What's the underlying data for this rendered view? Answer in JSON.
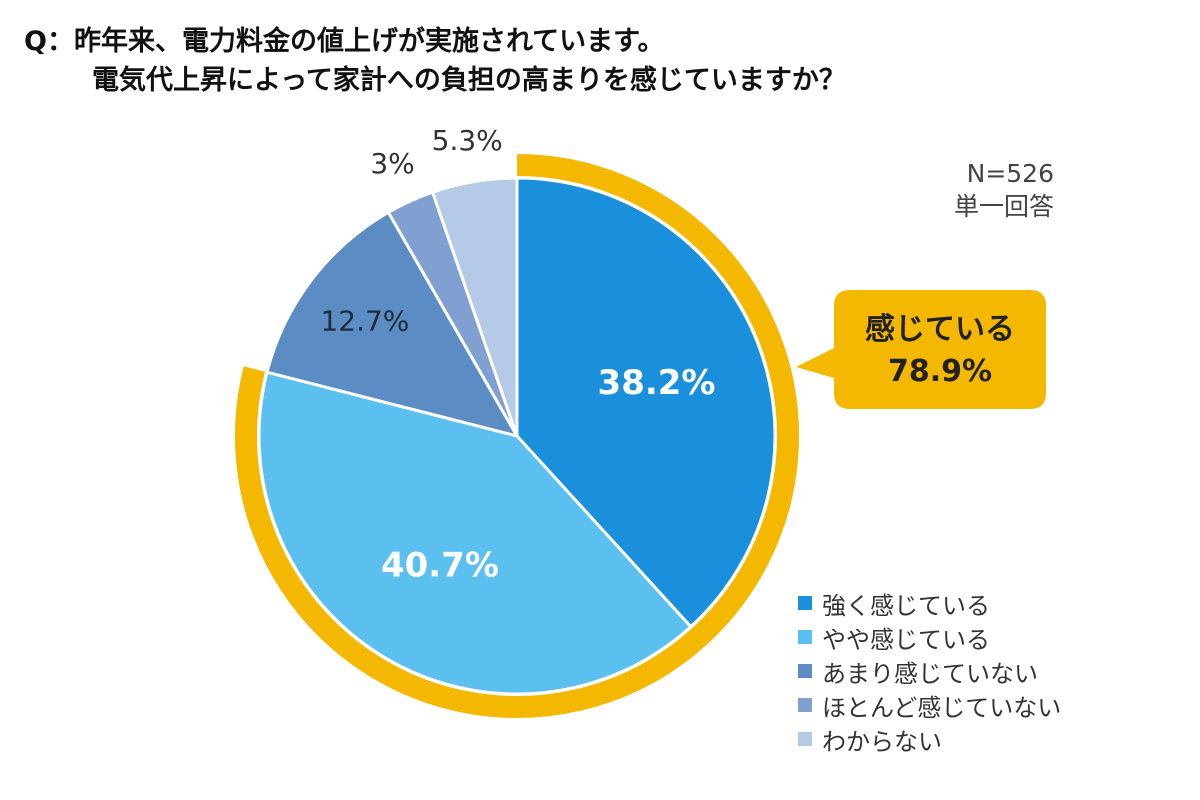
{
  "question": {
    "line1": "Q：昨年来、電力料金の値上げが実施されています。",
    "line2": "電気代上昇によって家計への負担の高まりを感じていますか？"
  },
  "sample": {
    "n": "N=526",
    "type": "単一回答"
  },
  "callout": {
    "label": "感じている",
    "value": "78.9%"
  },
  "colors": {
    "ring": "#F5B800",
    "callout_bg": "#F5B800",
    "slices": [
      "#1A8FDB",
      "#5BBFEF",
      "#5B8CC4",
      "#7FA0D0",
      "#B4CAE6"
    ]
  },
  "chart_data": {
    "type": "pie",
    "categories": [
      "強く感じている",
      "やや感じている",
      "あまり感じていない",
      "ほとんど感じていない",
      "わからない"
    ],
    "values": [
      38.2,
      40.7,
      12.7,
      3,
      5.3
    ],
    "labels": [
      "38.2%",
      "40.7%",
      "12.7%",
      "3%",
      "5.3%"
    ],
    "grouped": {
      "categories": [
        "強く感じている",
        "やや感じている"
      ],
      "label": "感じている",
      "value": 78.9
    },
    "start": "12 o'clock",
    "direction": "clockwise",
    "legend_position": "bottom-right"
  }
}
